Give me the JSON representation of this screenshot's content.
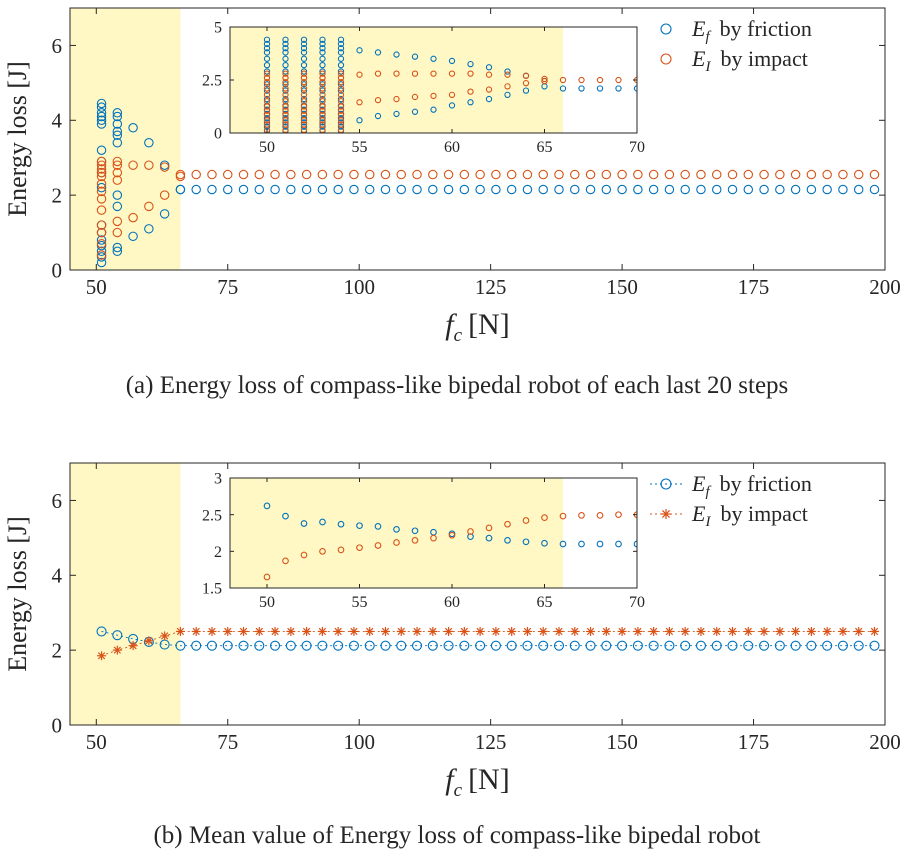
{
  "figure": {
    "caption_a": "(a)  Energy loss of compass-like bipedal robot of each last 20 steps",
    "caption_b": "(b)  Mean value of Energy loss of compass-like bipedal robot",
    "colors": {
      "friction": "#0072BD",
      "impact": "#D95319",
      "shade": "#FFF8C5"
    }
  },
  "chart_data": [
    {
      "id": "a-main",
      "type": "scatter",
      "xlabel_symbol": "f",
      "xlabel_subscript": "c",
      "xlabel_unit": "[N]",
      "ylabel": "Energy loss [J]",
      "xlim": [
        45,
        200
      ],
      "ylim": [
        0,
        7
      ],
      "xticks": [
        50,
        75,
        100,
        125,
        150,
        175,
        200
      ],
      "yticks": [
        0,
        2,
        4,
        6
      ],
      "shade_x": [
        45,
        66
      ],
      "legend_position": "top-right",
      "series": [
        {
          "key": "friction",
          "marker": "circle",
          "legend_symbol": "E",
          "legend_subscript": "f",
          "legend_text": "by friction",
          "points": [
            [
              51,
              0.2
            ],
            [
              51,
              0.35
            ],
            [
              51,
              0.5
            ],
            [
              51,
              0.65
            ],
            [
              51,
              0.8
            ],
            [
              51,
              1.0
            ],
            [
              51,
              1.2
            ],
            [
              51,
              2.2
            ],
            [
              51,
              2.6
            ],
            [
              51,
              2.9
            ],
            [
              51,
              3.2
            ],
            [
              51,
              3.9
            ],
            [
              51,
              4.0
            ],
            [
              51,
              4.1
            ],
            [
              51,
              4.2
            ],
            [
              51,
              4.35
            ],
            [
              51,
              4.45
            ],
            [
              54,
              0.5
            ],
            [
              54,
              0.6
            ],
            [
              54,
              1.7
            ],
            [
              54,
              2.0
            ],
            [
              54,
              3.4
            ],
            [
              54,
              3.6
            ],
            [
              54,
              3.7
            ],
            [
              54,
              3.9
            ],
            [
              54,
              4.1
            ],
            [
              54,
              4.2
            ],
            [
              57,
              0.9
            ],
            [
              57,
              3.8
            ],
            [
              60,
              1.1
            ],
            [
              60,
              3.4
            ],
            [
              63,
              1.5
            ],
            [
              63,
              2.8
            ],
            [
              66,
              2.15
            ]
          ],
          "steady": {
            "x_start": 66,
            "x_end": 198,
            "step": 3,
            "y": 2.15
          }
        },
        {
          "key": "impact",
          "marker": "circle",
          "legend_symbol": "E",
          "legend_subscript": "I",
          "legend_text": "by impact",
          "points": [
            [
              51,
              0.4
            ],
            [
              51,
              0.7
            ],
            [
              51,
              1.0
            ],
            [
              51,
              1.2
            ],
            [
              51,
              1.6
            ],
            [
              51,
              1.9
            ],
            [
              51,
              2.1
            ],
            [
              51,
              2.3
            ],
            [
              51,
              2.5
            ],
            [
              51,
              2.6
            ],
            [
              51,
              2.7
            ],
            [
              51,
              2.8
            ],
            [
              51,
              2.9
            ],
            [
              54,
              1.0
            ],
            [
              54,
              1.3
            ],
            [
              54,
              2.4
            ],
            [
              54,
              2.6
            ],
            [
              54,
              2.8
            ],
            [
              54,
              2.9
            ],
            [
              57,
              1.4
            ],
            [
              57,
              2.8
            ],
            [
              60,
              1.7
            ],
            [
              60,
              2.8
            ],
            [
              63,
              2.0
            ],
            [
              63,
              2.75
            ],
            [
              66,
              2.5
            ]
          ],
          "steady": {
            "x_start": 66,
            "x_end": 198,
            "step": 3,
            "y": 2.55
          }
        }
      ]
    },
    {
      "id": "a-inset",
      "type": "scatter",
      "xlim": [
        48,
        70
      ],
      "ylim": [
        0,
        5
      ],
      "xticks": [
        50,
        55,
        60,
        65,
        70
      ],
      "yticks": [
        0,
        2.5,
        5
      ],
      "ytick_labels": [
        "0",
        "2.5",
        "5"
      ],
      "shade_x": [
        48,
        66
      ],
      "series": [
        {
          "key": "friction",
          "column_sets": [
            {
              "x": [
                50,
                51,
                52,
                53,
                54
              ],
              "ys": [
                0.1,
                0.3,
                0.5,
                0.7,
                0.9,
                1.1,
                1.3,
                1.6,
                2.0,
                2.3,
                2.6,
                2.9,
                3.2,
                3.5,
                3.8,
                4.0,
                4.2,
                4.4
              ]
            }
          ],
          "points": [
            [
              55,
              0.6
            ],
            [
              55,
              3.9
            ],
            [
              56,
              0.8
            ],
            [
              56,
              3.8
            ],
            [
              57,
              0.9
            ],
            [
              57,
              3.7
            ],
            [
              58,
              1.0
            ],
            [
              58,
              3.6
            ],
            [
              59,
              1.1
            ],
            [
              59,
              3.5
            ],
            [
              60,
              1.3
            ],
            [
              60,
              3.4
            ],
            [
              61,
              1.45
            ],
            [
              61,
              3.25
            ],
            [
              62,
              1.6
            ],
            [
              62,
              3.1
            ],
            [
              63,
              1.8
            ],
            [
              63,
              2.9
            ],
            [
              64,
              2.0
            ],
            [
              64,
              2.7
            ],
            [
              65,
              2.2
            ],
            [
              65,
              2.45
            ],
            [
              66,
              2.1
            ],
            [
              67,
              2.1
            ],
            [
              68,
              2.1
            ],
            [
              69,
              2.1
            ],
            [
              70,
              2.1
            ]
          ]
        },
        {
          "key": "impact",
          "column_sets": [
            {
              "x": [
                50,
                51,
                52,
                53,
                54
              ],
              "ys": [
                0.15,
                0.4,
                0.6,
                0.85,
                1.05,
                1.25,
                1.5,
                1.8,
                2.1,
                2.4,
                2.6,
                2.8
              ]
            }
          ],
          "points": [
            [
              55,
              1.45
            ],
            [
              55,
              2.75
            ],
            [
              56,
              1.55
            ],
            [
              56,
              2.8
            ],
            [
              57,
              1.6
            ],
            [
              57,
              2.8
            ],
            [
              58,
              1.7
            ],
            [
              58,
              2.8
            ],
            [
              59,
              1.75
            ],
            [
              59,
              2.8
            ],
            [
              60,
              1.8
            ],
            [
              60,
              2.8
            ],
            [
              61,
              1.95
            ],
            [
              61,
              2.8
            ],
            [
              62,
              2.05
            ],
            [
              62,
              2.75
            ],
            [
              63,
              2.2
            ],
            [
              63,
              2.75
            ],
            [
              64,
              2.35
            ],
            [
              64,
              2.7
            ],
            [
              65,
              2.45
            ],
            [
              65,
              2.55
            ],
            [
              66,
              2.5
            ],
            [
              67,
              2.5
            ],
            [
              68,
              2.5
            ],
            [
              69,
              2.5
            ],
            [
              70,
              2.5
            ]
          ]
        }
      ]
    },
    {
      "id": "b-main",
      "type": "line",
      "xlabel_symbol": "f",
      "xlabel_subscript": "c",
      "xlabel_unit": "[N]",
      "ylabel": "Energy loss [J]",
      "xlim": [
        45,
        200
      ],
      "ylim": [
        0,
        7
      ],
      "xticks": [
        50,
        75,
        100,
        125,
        150,
        175,
        200
      ],
      "yticks": [
        0,
        2,
        4,
        6
      ],
      "shade_x": [
        45,
        66
      ],
      "legend_position": "top-right",
      "series": [
        {
          "key": "friction",
          "marker": "circle",
          "line": "dotted",
          "legend_symbol": "E",
          "legend_subscript": "f",
          "legend_text": "by friction",
          "points": [
            [
              51,
              2.5
            ],
            [
              54,
              2.4
            ],
            [
              57,
              2.3
            ],
            [
              60,
              2.22
            ],
            [
              63,
              2.15
            ]
          ],
          "steady": {
            "x_start": 66,
            "x_end": 198,
            "step": 3,
            "y": 2.12
          }
        },
        {
          "key": "impact",
          "marker": "star",
          "line": "dotted",
          "legend_symbol": "E",
          "legend_subscript": "I",
          "legend_text": "by impact",
          "points": [
            [
              51,
              1.85
            ],
            [
              54,
              2.0
            ],
            [
              57,
              2.12
            ],
            [
              60,
              2.25
            ],
            [
              63,
              2.38
            ]
          ],
          "steady": {
            "x_start": 66,
            "x_end": 198,
            "step": 3,
            "y": 2.5
          }
        }
      ]
    },
    {
      "id": "b-inset",
      "type": "line",
      "xlim": [
        48,
        70
      ],
      "ylim": [
        1.5,
        3
      ],
      "xticks": [
        50,
        55,
        60,
        65,
        70
      ],
      "yticks": [
        1.5,
        2,
        2.5,
        3
      ],
      "ytick_labels": [
        "1.5",
        "2",
        "2.5",
        "3"
      ],
      "shade_x": [
        48,
        66
      ],
      "series": [
        {
          "key": "friction",
          "marker": "circle",
          "points": [
            [
              50,
              2.62
            ],
            [
              51,
              2.48
            ],
            [
              52,
              2.38
            ],
            [
              53,
              2.4
            ],
            [
              54,
              2.37
            ],
            [
              55,
              2.35
            ],
            [
              56,
              2.34
            ],
            [
              57,
              2.3
            ],
            [
              58,
              2.28
            ],
            [
              59,
              2.26
            ],
            [
              60,
              2.24
            ],
            [
              61,
              2.2
            ],
            [
              62,
              2.18
            ],
            [
              63,
              2.15
            ],
            [
              64,
              2.13
            ],
            [
              65,
              2.11
            ],
            [
              66,
              2.1
            ],
            [
              67,
              2.1
            ],
            [
              68,
              2.1
            ],
            [
              69,
              2.1
            ],
            [
              70,
              2.1
            ]
          ]
        },
        {
          "key": "impact",
          "marker": "circle",
          "points": [
            [
              50,
              1.65
            ],
            [
              51,
              1.87
            ],
            [
              52,
              1.95
            ],
            [
              53,
              2.0
            ],
            [
              54,
              2.02
            ],
            [
              55,
              2.05
            ],
            [
              56,
              2.08
            ],
            [
              57,
              2.12
            ],
            [
              58,
              2.15
            ],
            [
              59,
              2.18
            ],
            [
              60,
              2.22
            ],
            [
              61,
              2.27
            ],
            [
              62,
              2.32
            ],
            [
              63,
              2.37
            ],
            [
              64,
              2.42
            ],
            [
              65,
              2.46
            ],
            [
              66,
              2.48
            ],
            [
              67,
              2.49
            ],
            [
              68,
              2.49
            ],
            [
              69,
              2.5
            ],
            [
              70,
              2.5
            ]
          ]
        }
      ]
    }
  ]
}
